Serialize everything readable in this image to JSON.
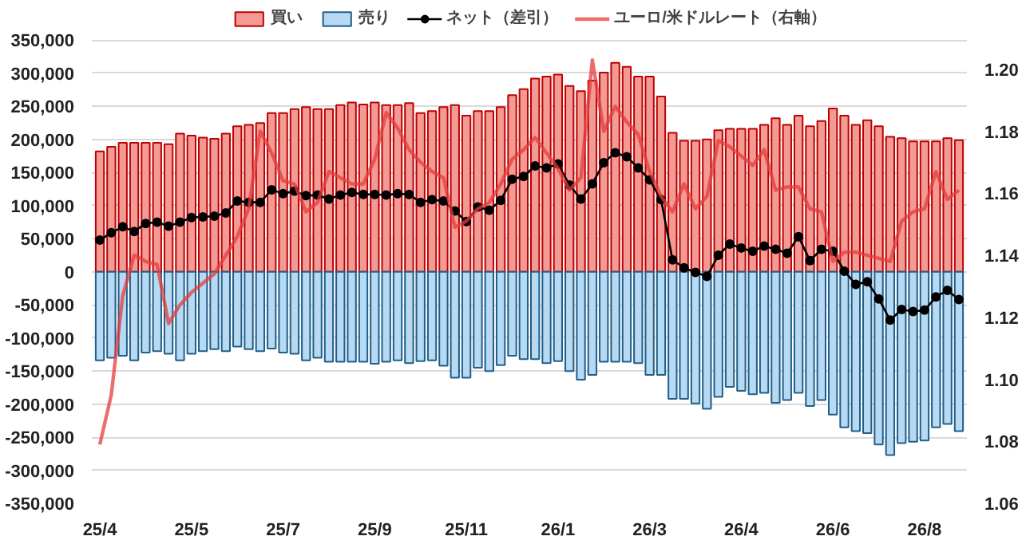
{
  "chart_data": {
    "type": "bar",
    "stacked": true,
    "grid": "y",
    "legend": "top",
    "marker": "none",
    "categories": [
      "25/4",
      null,
      null,
      null,
      null,
      null,
      null,
      null,
      "25/5",
      null,
      null,
      null,
      null,
      null,
      null,
      null,
      "25/7",
      null,
      null,
      null,
      null,
      null,
      null,
      null,
      "25/9",
      null,
      null,
      null,
      null,
      null,
      null,
      null,
      "25/11",
      null,
      null,
      null,
      null,
      null,
      null,
      null,
      "26/1",
      null,
      null,
      null,
      null,
      null,
      null,
      null,
      "26/3",
      null,
      null,
      null,
      null,
      null,
      null,
      null,
      "26/4",
      null,
      null,
      null,
      null,
      null,
      null,
      null,
      "26/6",
      null,
      null,
      null,
      null,
      null,
      null,
      null,
      "26/8",
      null,
      null,
      null
    ],
    "series": [
      {
        "name": "買い",
        "color": "#f29a94",
        "values": [
          182000,
          189000,
          195000,
          195000,
          195000,
          195000,
          193000,
          209000,
          206000,
          203000,
          201000,
          209000,
          220000,
          222000,
          225000,
          240000,
          240000,
          246000,
          249000,
          246000,
          246000,
          252000,
          256000,
          253000,
          256000,
          252000,
          252000,
          255000,
          240000,
          243000,
          249000,
          252000,
          236000,
          243000,
          243000,
          249000,
          267000,
          276000,
          292000,
          295000,
          298000,
          281000,
          273000,
          289000,
          301000,
          316000,
          310000,
          295000,
          295000,
          265000,
          210000,
          198000,
          198000,
          200000,
          214000,
          216000,
          216000,
          216000,
          222000,
          232000,
          222000,
          236000,
          220000,
          228000,
          247000,
          236000,
          222000,
          229000,
          220000,
          204000,
          202000,
          197000,
          197000,
          197000,
          202000,
          199000
        ]
      },
      {
        "name": "売り",
        "color": "#b7d9f2",
        "values": [
          -134000,
          -130000,
          -127000,
          -134000,
          -122000,
          -120000,
          -124000,
          -134000,
          -124000,
          -120000,
          -117000,
          -120000,
          -113000,
          -117000,
          -120000,
          -116000,
          -122000,
          -124000,
          -134000,
          -130000,
          -136000,
          -136000,
          -136000,
          -136000,
          -139000,
          -136000,
          -134000,
          -138000,
          -135000,
          -134000,
          -142000,
          -160000,
          -160000,
          -145000,
          -150000,
          -141000,
          -127000,
          -132000,
          -132000,
          -138000,
          -135000,
          -150000,
          -163000,
          -156000,
          -136000,
          -136000,
          -136000,
          -138000,
          -156000,
          -156000,
          -192000,
          -192000,
          -199000,
          -207000,
          -189000,
          -174000,
          -180000,
          -185000,
          -183000,
          -198000,
          -194000,
          -183000,
          -203000,
          -194000,
          -216000,
          -235000,
          -241000,
          -244000,
          -261000,
          -277000,
          -259000,
          -257000,
          -255000,
          -235000,
          -230000,
          -241000
        ]
      },
      {
        "name": "ネット（差引）",
        "type": "line",
        "marker": "circle",
        "color": "#000000",
        "values": [
          48000,
          59000,
          68000,
          61000,
          73000,
          75000,
          69000,
          75000,
          82000,
          83000,
          84000,
          89000,
          107000,
          105000,
          105000,
          124000,
          118000,
          122000,
          115000,
          116000,
          110000,
          116000,
          120000,
          117000,
          117000,
          116000,
          118000,
          117000,
          105000,
          109000,
          107000,
          92000,
          76000,
          98000,
          93000,
          108000,
          140000,
          144000,
          160000,
          157000,
          163000,
          131000,
          110000,
          133000,
          165000,
          180000,
          174000,
          157000,
          139000,
          109000,
          18000,
          6000,
          -1000,
          -7000,
          25000,
          42000,
          36000,
          31000,
          39000,
          34000,
          28000,
          53000,
          17000,
          34000,
          31000,
          1000,
          -19000,
          -15000,
          -41000,
          -73000,
          -57000,
          -60000,
          -58000,
          -38000,
          -28000,
          -42000
        ]
      },
      {
        "name": "ユーロ/米ドルレート（右軸）",
        "type": "line",
        "axis": "y2",
        "color": "#e63c3c",
        "values": [
          1.079,
          1.095,
          1.127,
          1.14,
          1.138,
          1.137,
          1.118,
          1.124,
          1.128,
          1.131,
          1.134,
          1.14,
          1.146,
          1.155,
          1.18,
          1.173,
          1.164,
          1.163,
          1.154,
          1.157,
          1.167,
          1.165,
          1.163,
          1.163,
          1.171,
          1.186,
          1.181,
          1.174,
          1.17,
          1.167,
          1.165,
          1.149,
          1.151,
          1.155,
          1.157,
          1.163,
          1.171,
          1.174,
          1.178,
          1.173,
          1.168,
          1.161,
          1.165,
          1.203,
          1.18,
          1.188,
          1.183,
          1.179,
          1.167,
          1.159,
          1.154,
          1.163,
          1.155,
          1.159,
          1.177,
          1.175,
          1.172,
          1.169,
          1.174,
          1.161,
          1.162,
          1.162,
          1.155,
          1.154,
          1.138,
          1.141,
          1.141,
          1.14,
          1.139,
          1.138,
          1.151,
          1.154,
          1.155,
          1.167,
          1.158,
          1.161
        ]
      }
    ],
    "ylim": [
      -350000,
      400000
    ],
    "yticks": [
      {
        "value": -350000,
        "label": "-350,000"
      },
      {
        "value": -300000,
        "label": "-300,000"
      },
      {
        "value": -250000,
        "label": "-250,000"
      },
      {
        "value": -200000,
        "label": "-200,000"
      },
      {
        "value": -150000,
        "label": "-150,000"
      },
      {
        "value": -100000,
        "label": "-100,000"
      },
      {
        "value": -50000,
        "label": "-50,000"
      },
      0,
      {
        "value": 50000,
        "label": "50,000"
      },
      {
        "value": 100000,
        "label": "100,000"
      },
      {
        "value": 150000,
        "label": "150,000"
      },
      {
        "value": 200000,
        "label": "200,000"
      },
      {
        "value": 250000,
        "label": "250,000"
      },
      {
        "value": 300000,
        "label": "300,000"
      },
      {
        "value": 350000,
        "label": "350,000"
      }
    ],
    "y2lim": [
      1.06,
      1.22
    ],
    "y2ticks": [
      {
        "value": 1.06,
        "label": "1.06"
      },
      {
        "value": 1.08,
        "label": "1.08"
      },
      {
        "value": 1.1,
        "label": "1.10"
      },
      {
        "value": 1.12,
        "label": "1.12"
      },
      {
        "value": 1.14,
        "label": "1.14"
      },
      {
        "value": 1.16,
        "label": "1.16"
      },
      {
        "value": 1.18,
        "label": "1.18"
      },
      {
        "value": 1.2,
        "label": "1.20"
      }
    ]
  }
}
